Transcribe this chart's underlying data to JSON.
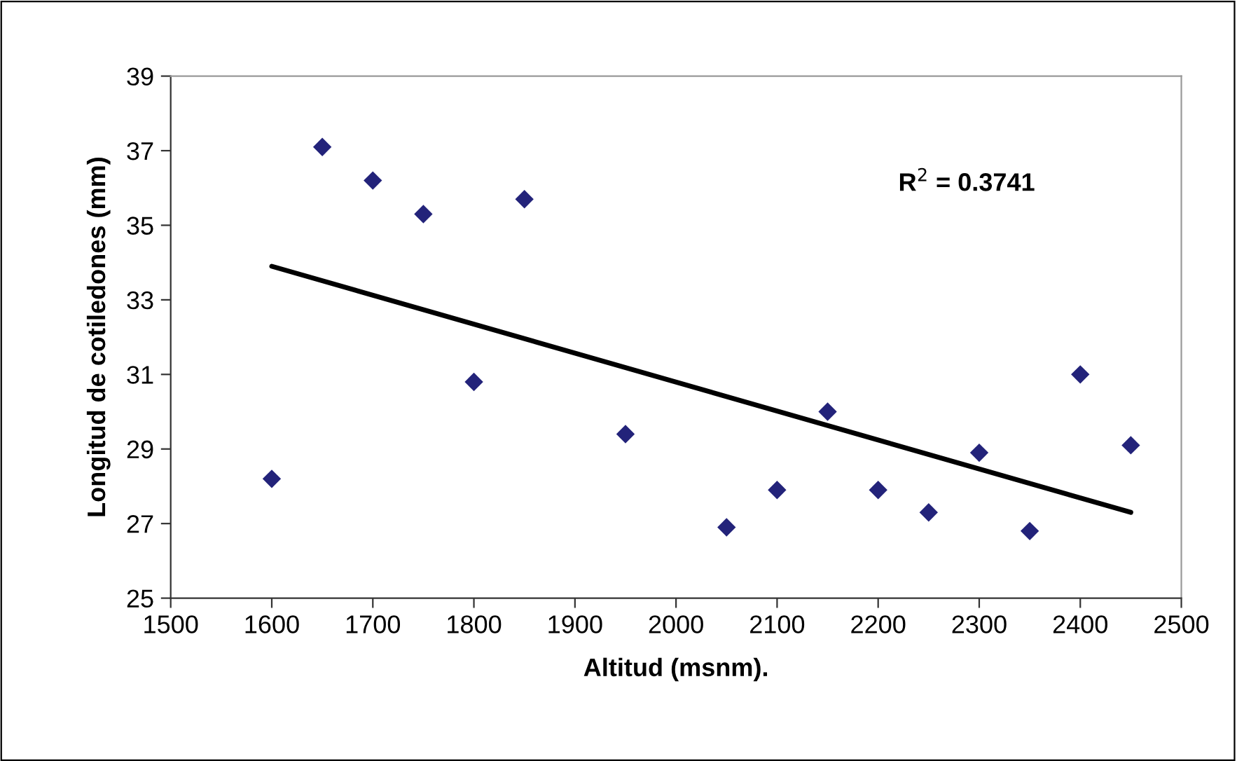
{
  "chart_data": {
    "type": "scatter",
    "xlabel": "Altitud (msnm).",
    "ylabel": "Longitud de cotiledones (mm)",
    "xlim": [
      1500,
      2500
    ],
    "xticks": [
      1500,
      1600,
      1700,
      1800,
      1900,
      2000,
      2100,
      2200,
      2300,
      2400,
      2500
    ],
    "ylim": [
      25,
      39
    ],
    "yticks": [
      25,
      27,
      29,
      31,
      33,
      35,
      37,
      39
    ],
    "grid": false,
    "legend": false,
    "marker": "diamond",
    "series": [
      {
        "color": "#23237a",
        "x": [
          1600,
          1650,
          1700,
          1750,
          1800,
          1850,
          1950,
          2050,
          2100,
          2150,
          2200,
          2250,
          2300,
          2350,
          2400,
          2450
        ],
        "values": [
          28.2,
          37.1,
          36.2,
          35.3,
          30.8,
          35.7,
          29.4,
          26.9,
          27.9,
          30.0,
          27.9,
          27.3,
          28.9,
          26.8,
          31.0,
          29.1
        ]
      },
      {
        "type": "line",
        "color": "#000000",
        "line_style": "solid",
        "marker": "none",
        "x": [
          1600,
          2450
        ],
        "values": [
          33.9,
          27.3
        ]
      }
    ],
    "annotations": [
      "R$^{2}$ = 0.3741"
    ]
  }
}
